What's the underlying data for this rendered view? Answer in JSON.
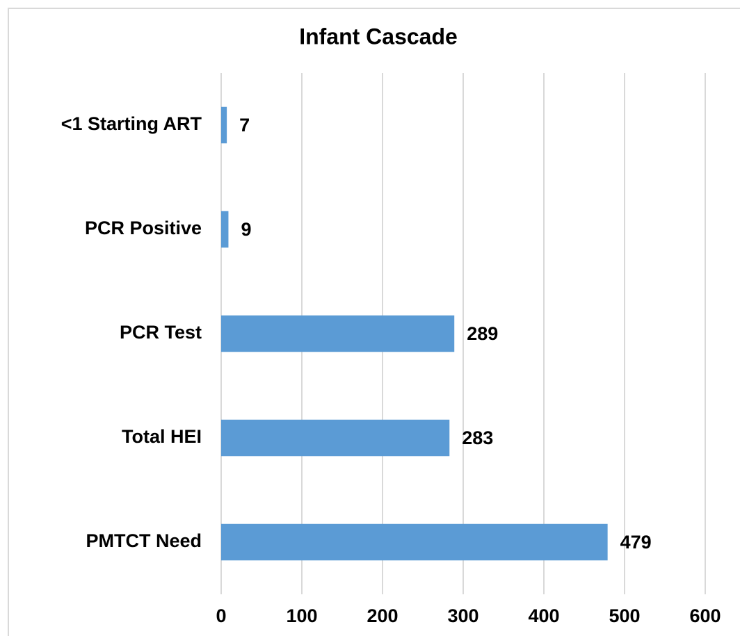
{
  "chart_data": {
    "type": "bar",
    "orientation": "horizontal",
    "title": "Infant Cascade",
    "categories": [
      "<1 Starting ART",
      "PCR Positive",
      "PCR Test",
      "Total HEI",
      "PMTCT Need"
    ],
    "values": [
      7,
      9,
      289,
      283,
      479
    ],
    "color": "#5b9bd5",
    "xlim": [
      0,
      600
    ],
    "xticks": [
      0,
      100,
      200,
      300,
      400,
      500,
      600
    ],
    "grid": true
  }
}
